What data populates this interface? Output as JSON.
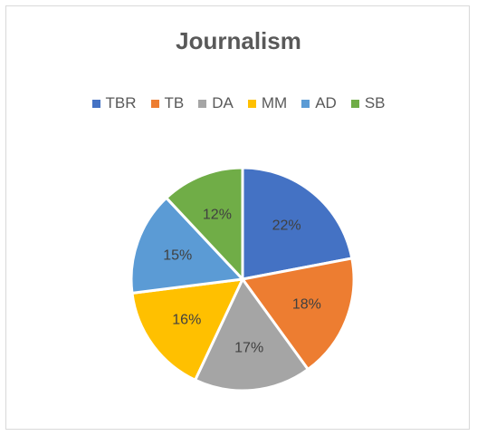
{
  "chart_data": {
    "type": "pie",
    "title": "Journalism",
    "legend_position": "top",
    "categories": [
      "TBR",
      "TB",
      "DA",
      "MM",
      "AD",
      "SB"
    ],
    "values": [
      22,
      18,
      17,
      16,
      15,
      12
    ],
    "labels": [
      "22%",
      "18%",
      "17%",
      "16%",
      "15%",
      "12%"
    ],
    "colors": [
      "#4472C4",
      "#ED7D31",
      "#A5A5A5",
      "#FFC000",
      "#5B9BD5",
      "#70AD47"
    ]
  }
}
